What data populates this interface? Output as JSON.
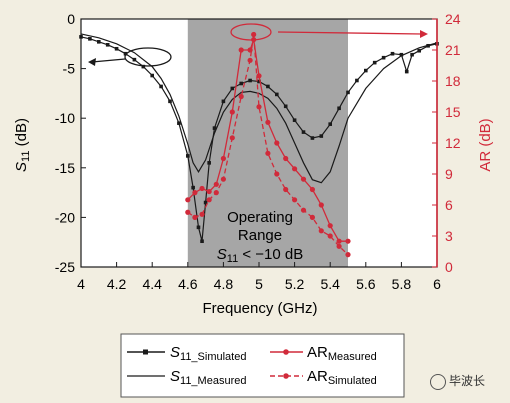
{
  "chart_data": {
    "type": "line",
    "xlabel": "Frequency (GHz)",
    "ylabel_left": "S11 (dB)",
    "ylabel_right": "AR (dB)",
    "xlim": [
      4,
      6
    ],
    "ylim_left": [
      -25,
      0
    ],
    "ylim_right": [
      0,
      24
    ],
    "x_ticks": [
      "4",
      "4.2",
      "4.4",
      "4.6",
      "4.8",
      "5",
      "5.2",
      "5.4",
      "5.6",
      "5.8",
      "6"
    ],
    "y_left_ticks": [
      "0",
      "-5",
      "-10",
      "-15",
      "-20",
      "-25"
    ],
    "y_right_ticks": [
      "24",
      "21",
      "18",
      "15",
      "12",
      "9",
      "6",
      "3",
      "0"
    ],
    "shaded_range": [
      4.6,
      5.5
    ],
    "annotation": {
      "line1": "Operating",
      "line2": "Range",
      "line3": "S11 < −10 dB"
    },
    "series": [
      {
        "name": "S11_Simulated",
        "axis": "left",
        "color": "#1a1a1a",
        "style": "solid",
        "marker": "square",
        "x": [
          4.0,
          4.05,
          4.1,
          4.15,
          4.2,
          4.25,
          4.3,
          4.35,
          4.4,
          4.45,
          4.5,
          4.55,
          4.6,
          4.63,
          4.66,
          4.68,
          4.7,
          4.72,
          4.75,
          4.8,
          4.85,
          4.9,
          4.95,
          5.0,
          5.05,
          5.1,
          5.15,
          5.2,
          5.25,
          5.3,
          5.35,
          5.4,
          5.45,
          5.5,
          5.55,
          5.6,
          5.65,
          5.7,
          5.75,
          5.8,
          5.83,
          5.86,
          5.9,
          5.95,
          6.0
        ],
        "y": [
          -1.8,
          -2.0,
          -2.3,
          -2.6,
          -3.0,
          -3.5,
          -4.1,
          -4.8,
          -5.7,
          -6.8,
          -8.3,
          -10.5,
          -13.8,
          -17.0,
          -21.0,
          -22.4,
          -18.5,
          -14.5,
          -11.0,
          -8.3,
          -7.0,
          -6.5,
          -6.2,
          -6.3,
          -6.8,
          -7.6,
          -8.8,
          -10.2,
          -11.4,
          -12.0,
          -11.8,
          -10.6,
          -9.0,
          -7.4,
          -6.2,
          -5.2,
          -4.4,
          -3.9,
          -3.5,
          -3.6,
          -5.3,
          -3.6,
          -3.2,
          -2.7,
          -2.5
        ]
      },
      {
        "name": "S11_Measured",
        "axis": "left",
        "color": "#1a1a1a",
        "style": "solid",
        "marker": "none",
        "x": [
          4.0,
          4.1,
          4.2,
          4.3,
          4.4,
          4.45,
          4.5,
          4.55,
          4.6,
          4.63,
          4.66,
          4.7,
          4.75,
          4.8,
          4.85,
          4.9,
          4.95,
          5.0,
          5.05,
          5.1,
          5.15,
          5.2,
          5.25,
          5.3,
          5.35,
          5.4,
          5.45,
          5.5,
          5.6,
          5.7,
          5.8,
          5.9,
          6.0
        ],
        "y": [
          -1.5,
          -1.9,
          -2.5,
          -3.4,
          -4.8,
          -6.0,
          -7.6,
          -9.8,
          -12.6,
          -14.5,
          -15.4,
          -14.2,
          -11.5,
          -9.4,
          -8.1,
          -7.4,
          -7.3,
          -7.5,
          -8.0,
          -9.0,
          -10.5,
          -12.5,
          -14.5,
          -16.2,
          -16.5,
          -15.4,
          -12.8,
          -10.0,
          -7.0,
          -5.0,
          -3.7,
          -2.9,
          -2.4
        ]
      },
      {
        "name": "AR_Measured",
        "axis": "right",
        "color": "#d12a3a",
        "style": "solid",
        "marker": "circle",
        "x": [
          4.6,
          4.64,
          4.68,
          4.72,
          4.76,
          4.8,
          4.85,
          4.9,
          4.95,
          4.97,
          5.0,
          5.05,
          5.1,
          5.15,
          5.2,
          5.25,
          5.3,
          5.35,
          5.4,
          5.45,
          5.5
        ],
        "y": [
          6.5,
          7.2,
          7.6,
          7.3,
          8.0,
          10.5,
          15.0,
          21.0,
          21.0,
          22.0,
          18.5,
          14.0,
          12.0,
          10.5,
          9.5,
          8.5,
          7.5,
          6.0,
          4.0,
          2.5,
          2.5
        ]
      },
      {
        "name": "AR_Simulated",
        "axis": "right",
        "color": "#d12a3a",
        "style": "dashed",
        "marker": "circle",
        "x": [
          4.6,
          4.64,
          4.68,
          4.72,
          4.76,
          4.8,
          4.85,
          4.9,
          4.95,
          4.97,
          5.0,
          5.05,
          5.1,
          5.15,
          5.2,
          5.25,
          5.3,
          5.35,
          5.4,
          5.45,
          5.5
        ],
        "y": [
          5.3,
          4.8,
          5.1,
          6.5,
          7.2,
          8.5,
          12.5,
          16.5,
          20.0,
          22.5,
          15.5,
          11.0,
          9.0,
          7.5,
          6.5,
          5.5,
          4.8,
          3.5,
          3.0,
          2.0,
          1.2
        ]
      }
    ],
    "legend": {
      "left": [
        {
          "label": "S",
          "sub": "11_Simulated"
        },
        {
          "label": "S",
          "sub": "11_Measured"
        }
      ],
      "right": [
        {
          "label": "AR",
          "sub": "Measured"
        },
        {
          "label": "AR",
          "sub": "Simulated"
        }
      ]
    },
    "colors": {
      "shade": "#a6a6a6",
      "plot_bg": "#ffffff",
      "page_bg": "#f2eee1",
      "red": "#d12a3a",
      "black": "#1a1a1a"
    }
  },
  "watermark": "毕波长"
}
